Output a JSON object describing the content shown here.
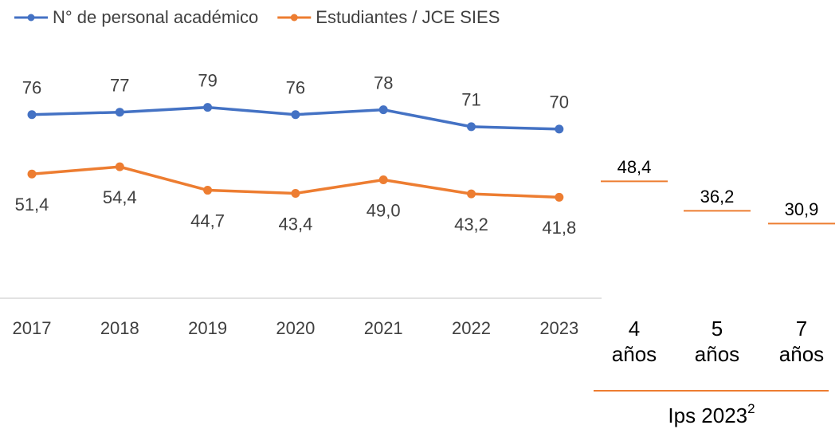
{
  "chart_data": {
    "type": "line",
    "categories": [
      "2017",
      "2018",
      "2019",
      "2020",
      "2021",
      "2022",
      "2023"
    ],
    "series": [
      {
        "name": "N° de personal académico",
        "color": "#4472c4",
        "values": [
          76,
          77,
          79,
          76,
          78,
          71,
          70
        ]
      },
      {
        "name": "Estudiantes / JCE SIES",
        "color": "#ed7d31",
        "values": [
          51.4,
          54.4,
          44.7,
          43.4,
          49.0,
          43.2,
          41.8
        ],
        "value_labels": [
          "51,4",
          "54,4",
          "44,7",
          "43,4",
          "49,0",
          "43,2",
          "41,8"
        ]
      }
    ],
    "ylim": [
      0,
      100
    ],
    "legend": "top",
    "benchmarks": {
      "title": "Ips 2023",
      "title_sup": "2",
      "color": "#ed7d31",
      "categories": [
        "4 años",
        "5 años",
        "7 años"
      ],
      "values": [
        48.4,
        36.2,
        30.9
      ],
      "value_labels": [
        "48,4",
        "36,2",
        "30,9"
      ]
    }
  }
}
